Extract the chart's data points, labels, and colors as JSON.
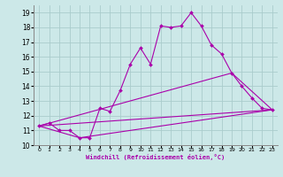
{
  "xlabel": "Windchill (Refroidissement éolien,°C)",
  "bg_color": "#cce8e8",
  "grid_color": "#aacccc",
  "line_color": "#aa00aa",
  "xlim": [
    -0.5,
    23.5
  ],
  "ylim": [
    10,
    19.5
  ],
  "xticks": [
    0,
    1,
    2,
    3,
    4,
    5,
    6,
    7,
    8,
    9,
    10,
    11,
    12,
    13,
    14,
    15,
    16,
    17,
    18,
    19,
    20,
    21,
    22,
    23
  ],
  "yticks": [
    10,
    11,
    12,
    13,
    14,
    15,
    16,
    17,
    18,
    19
  ],
  "series1_x": [
    0,
    1,
    2,
    3,
    4,
    5,
    6,
    7,
    8,
    9,
    10,
    11,
    12,
    13,
    14,
    15,
    16,
    17,
    18,
    19,
    20,
    21,
    22,
    23
  ],
  "series1_y": [
    11.3,
    11.5,
    11.0,
    11.0,
    10.5,
    10.5,
    12.5,
    12.3,
    13.7,
    15.5,
    16.6,
    15.5,
    18.1,
    18.0,
    18.1,
    19.0,
    18.1,
    16.8,
    16.2,
    14.9,
    14.0,
    13.2,
    12.5,
    12.4
  ],
  "series2_x": [
    0,
    23
  ],
  "series2_y": [
    11.3,
    12.4
  ],
  "series3_x": [
    0,
    4,
    23
  ],
  "series3_y": [
    11.3,
    10.5,
    12.4
  ],
  "series4_x": [
    0,
    19,
    23
  ],
  "series4_y": [
    11.3,
    14.9,
    12.4
  ]
}
